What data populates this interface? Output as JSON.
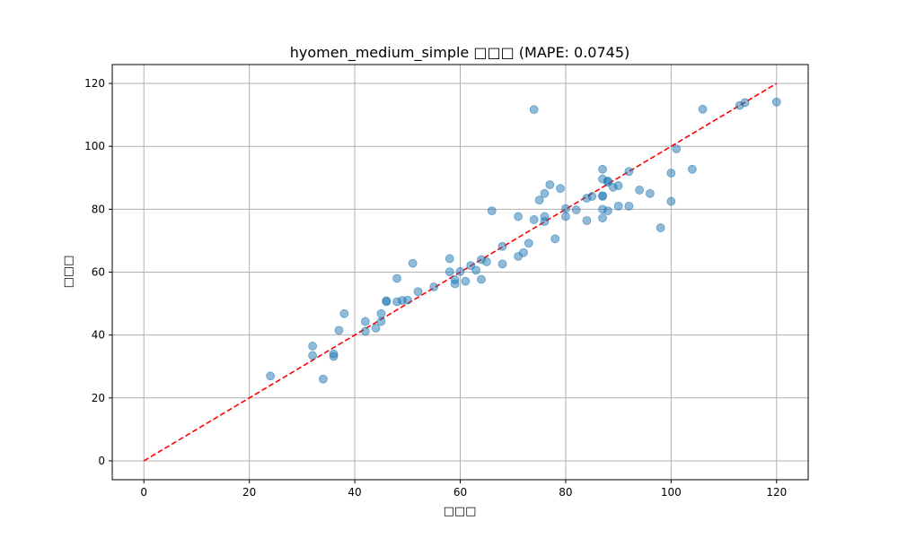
{
  "chart_data": {
    "type": "scatter",
    "title": "hyomen_medium_simple □□□ (MAPE: 0.0745)",
    "xlabel": "□□□",
    "ylabel": "□□□",
    "xlim": [
      -6,
      126
    ],
    "ylim": [
      -6,
      126
    ],
    "xticks": [
      0,
      20,
      40,
      60,
      80,
      100,
      120
    ],
    "yticks": [
      0,
      20,
      40,
      60,
      80,
      100,
      120
    ],
    "grid": true,
    "point_color": "#1f77b4",
    "reference_line": {
      "from": [
        0,
        0
      ],
      "to": [
        120,
        120
      ],
      "color": "#ff0000",
      "style": "dashed"
    },
    "points": [
      [
        24,
        27
      ],
      [
        32,
        36.5
      ],
      [
        32,
        33.5
      ],
      [
        34,
        26
      ],
      [
        36,
        34
      ],
      [
        36,
        33.2
      ],
      [
        37,
        41.5
      ],
      [
        38,
        46.8
      ],
      [
        42,
        44.3
      ],
      [
        42,
        41.2
      ],
      [
        44,
        42.2
      ],
      [
        45,
        46.8
      ],
      [
        45,
        44.3
      ],
      [
        46,
        50.6
      ],
      [
        46,
        50.9
      ],
      [
        48,
        50.6
      ],
      [
        48,
        58
      ],
      [
        49,
        51
      ],
      [
        50,
        51.1
      ],
      [
        51,
        62.8
      ],
      [
        52,
        53.8
      ],
      [
        55,
        55.3
      ],
      [
        58,
        64.3
      ],
      [
        58,
        60.1
      ],
      [
        59,
        57.6
      ],
      [
        59,
        56.3
      ],
      [
        60,
        60.2
      ],
      [
        61,
        57.1
      ],
      [
        62,
        62.1
      ],
      [
        63,
        60.6
      ],
      [
        64,
        64
      ],
      [
        64,
        57.7
      ],
      [
        65,
        63.3
      ],
      [
        66,
        79.5
      ],
      [
        68,
        68.2
      ],
      [
        68,
        62.6
      ],
      [
        71,
        77.7
      ],
      [
        71,
        65
      ],
      [
        72,
        66.2
      ],
      [
        73,
        69.2
      ],
      [
        74,
        111.7
      ],
      [
        74,
        76.7
      ],
      [
        75,
        82.9
      ],
      [
        76,
        85
      ],
      [
        76,
        77.7
      ],
      [
        76,
        76.1
      ],
      [
        77,
        87.8
      ],
      [
        78,
        70.6
      ],
      [
        79,
        86.6
      ],
      [
        80,
        80.2
      ],
      [
        80,
        77.7
      ],
      [
        82,
        79.8
      ],
      [
        84,
        83.5
      ],
      [
        84,
        76.4
      ],
      [
        85,
        84.1
      ],
      [
        87,
        92.7
      ],
      [
        87,
        89.6
      ],
      [
        87,
        84.3
      ],
      [
        87,
        84.1
      ],
      [
        87,
        80
      ],
      [
        87,
        77.2
      ],
      [
        88,
        89
      ],
      [
        88,
        88.6
      ],
      [
        88,
        79.5
      ],
      [
        89,
        87
      ],
      [
        90,
        87.5
      ],
      [
        90,
        81
      ],
      [
        92,
        92
      ],
      [
        92,
        81
      ],
      [
        94,
        86.1
      ],
      [
        96,
        85
      ],
      [
        98,
        74.1
      ],
      [
        100,
        91.5
      ],
      [
        100,
        82.5
      ],
      [
        101,
        99.2
      ],
      [
        104,
        92.7
      ],
      [
        106,
        111.8
      ],
      [
        113,
        113
      ],
      [
        114,
        113.9
      ],
      [
        120,
        114.1
      ]
    ]
  }
}
